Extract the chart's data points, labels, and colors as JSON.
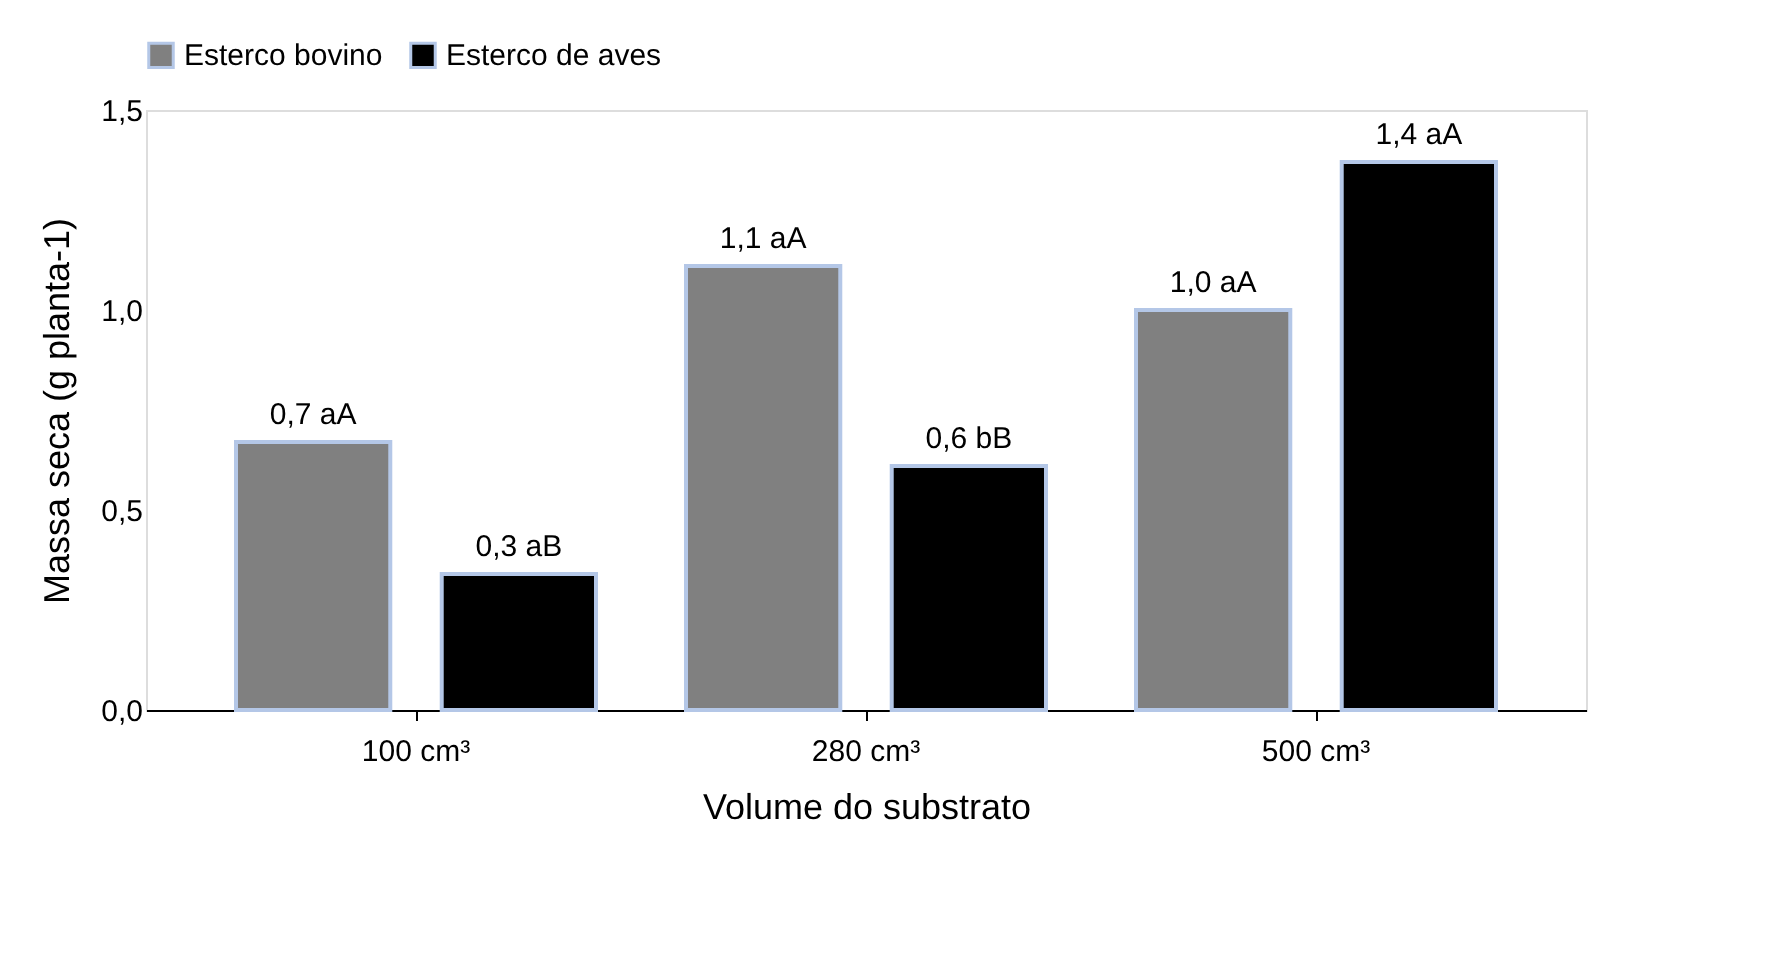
{
  "chart_data": {
    "type": "bar",
    "xlabel": "Volume do substrato",
    "ylabel": "Massa seca (g planta-1)",
    "categories": [
      "100 cm³",
      "280 cm³",
      "500 cm³"
    ],
    "series": [
      {
        "name": "Esterco bovino",
        "color": "#808080",
        "values": [
          0.67,
          1.11,
          1.0
        ],
        "value_labels": [
          "0,7 aA",
          "1,1 aA",
          "1,0 aA"
        ]
      },
      {
        "name": "Esterco de aves",
        "color": "#000000",
        "values": [
          0.34,
          0.61,
          1.37
        ],
        "value_labels": [
          "0,3 aB",
          "0,6 bB",
          "1,4 aA"
        ]
      }
    ],
    "ylim": [
      0,
      1.5
    ],
    "yticks": [
      {
        "value": 0,
        "label": "0,0"
      },
      {
        "value": 0.5,
        "label": "0,5"
      },
      {
        "value": 1.0,
        "label": "1,0"
      },
      {
        "value": 1.5,
        "label": "1,5"
      }
    ],
    "grid": false,
    "legend": "top"
  }
}
